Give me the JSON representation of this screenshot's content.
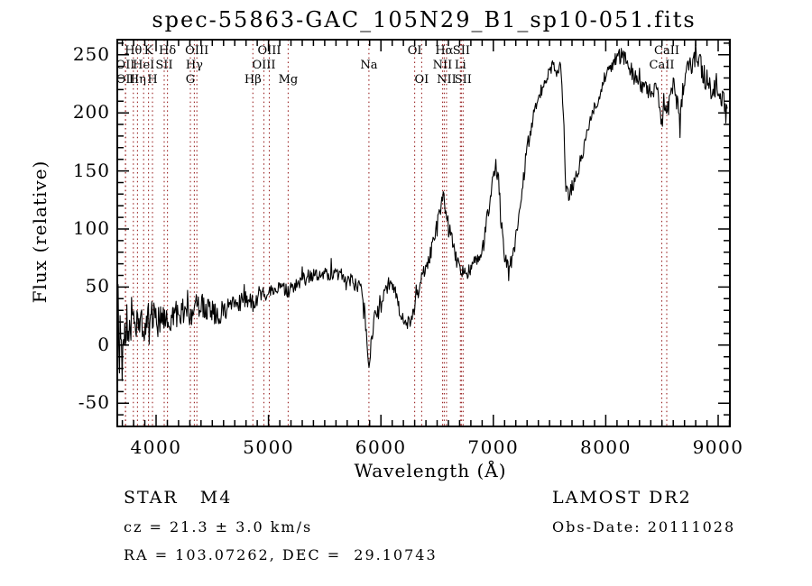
{
  "chart_data": {
    "type": "line",
    "title": "spec-55863-GAC_105N29_B1_sp10-051.fits",
    "xlabel": "Wavelength (Å)",
    "ylabel": "Flux (relative)",
    "xlim": [
      3655,
      9104
    ],
    "ylim": [
      -70,
      263
    ],
    "xticks": [
      4000,
      5000,
      6000,
      7000,
      8000,
      9000
    ],
    "yticks": [
      -50,
      0,
      50,
      100,
      150,
      200,
      250
    ],
    "x_minor_step": 100,
    "y_minor_step": 10,
    "grid": false,
    "legend": "none",
    "axis_color": "#000000",
    "line_color": "#000000",
    "marker_line_color": "#992222",
    "markers": [
      {
        "label": "Hθ",
        "wavelength": 3798,
        "row": 1
      },
      {
        "label": "K",
        "wavelength": 3933,
        "row": 1
      },
      {
        "label": "Hδ",
        "wavelength": 4101,
        "row": 1
      },
      {
        "label": "OIII",
        "wavelength": 4363,
        "row": 1
      },
      {
        "label": "OIII",
        "wavelength": 5007,
        "row": 1
      },
      {
        "label": "OI",
        "wavelength": 6300,
        "row": 1
      },
      {
        "label": "Hα",
        "wavelength": 6563,
        "row": 1
      },
      {
        "label": "SII",
        "wavelength": 6716,
        "row": 1
      },
      {
        "label": "CaII",
        "wavelength": 8542,
        "row": 1
      },
      {
        "label": "OII",
        "wavelength": 3727,
        "row": 2
      },
      {
        "label": "HeI",
        "wavelength": 3889,
        "row": 2
      },
      {
        "label": "SII",
        "wavelength": 4072,
        "row": 2
      },
      {
        "label": "Hγ",
        "wavelength": 4340,
        "row": 2
      },
      {
        "label": "OIII",
        "wavelength": 4959,
        "row": 2
      },
      {
        "label": "Na",
        "wavelength": 5893,
        "row": 2
      },
      {
        "label": "NII",
        "wavelength": 6548,
        "row": 2
      },
      {
        "label": "Li",
        "wavelength": 6707,
        "row": 2
      },
      {
        "label": "CaII",
        "wavelength": 8498,
        "row": 2
      },
      {
        "label": "OII",
        "wavelength": 3729,
        "row": 3
      },
      {
        "label": "Hη",
        "wavelength": 3835,
        "row": 3
      },
      {
        "label": "H",
        "wavelength": 3968,
        "row": 3
      },
      {
        "label": "G",
        "wavelength": 4305,
        "row": 3
      },
      {
        "label": "Hβ",
        "wavelength": 4861,
        "row": 3
      },
      {
        "label": "Mg",
        "wavelength": 5175,
        "row": 3
      },
      {
        "label": "OI",
        "wavelength": 6363,
        "row": 3
      },
      {
        "label": "NII",
        "wavelength": 6583,
        "row": 3
      },
      {
        "label": "SII",
        "wavelength": 6731,
        "row": 3
      }
    ],
    "series": [
      {
        "name": "spectrum",
        "noise_seed": 20111028,
        "step": 6,
        "x_end": 9080,
        "anchors": [
          [
            3656,
            30
          ],
          [
            3659,
            -48
          ],
          [
            3662,
            58
          ],
          [
            3666,
            -30
          ],
          [
            3670,
            66
          ],
          [
            3674,
            -12
          ],
          [
            3678,
            40
          ],
          [
            3684,
            2
          ],
          [
            3690,
            28
          ],
          [
            3700,
            16
          ],
          [
            3720,
            20
          ],
          [
            3740,
            22
          ],
          [
            3760,
            20
          ],
          [
            3780,
            23
          ],
          [
            3800,
            22
          ],
          [
            3820,
            20
          ],
          [
            3840,
            21
          ],
          [
            3860,
            22
          ],
          [
            3880,
            21
          ],
          [
            3900,
            23
          ],
          [
            3920,
            24
          ],
          [
            3940,
            25
          ],
          [
            3960,
            24
          ],
          [
            3980,
            23
          ],
          [
            4000,
            22
          ],
          [
            4030,
            20
          ],
          [
            4060,
            19
          ],
          [
            4090,
            17
          ],
          [
            4120,
            21
          ],
          [
            4150,
            24
          ],
          [
            4180,
            26
          ],
          [
            4210,
            28
          ],
          [
            4240,
            29
          ],
          [
            4270,
            28
          ],
          [
            4300,
            26
          ],
          [
            4330,
            29
          ],
          [
            4360,
            32
          ],
          [
            4390,
            34
          ],
          [
            4420,
            34
          ],
          [
            4450,
            32
          ],
          [
            4480,
            30
          ],
          [
            4510,
            28
          ],
          [
            4540,
            26
          ],
          [
            4570,
            27
          ],
          [
            4600,
            29
          ],
          [
            4640,
            32
          ],
          [
            4680,
            34
          ],
          [
            4720,
            35
          ],
          [
            4760,
            37
          ],
          [
            4800,
            39
          ],
          [
            4830,
            38
          ],
          [
            4861,
            37
          ],
          [
            4890,
            40
          ],
          [
            4920,
            42
          ],
          [
            4950,
            44
          ],
          [
            4980,
            45
          ],
          [
            5010,
            46
          ],
          [
            5040,
            47
          ],
          [
            5070,
            48
          ],
          [
            5100,
            49
          ],
          [
            5140,
            48
          ],
          [
            5175,
            47
          ],
          [
            5210,
            50
          ],
          [
            5250,
            54
          ],
          [
            5290,
            56
          ],
          [
            5330,
            58
          ],
          [
            5370,
            60
          ],
          [
            5410,
            61
          ],
          [
            5450,
            59
          ],
          [
            5490,
            61
          ],
          [
            5530,
            62
          ],
          [
            5556,
            61
          ],
          [
            5560,
            94
          ],
          [
            5564,
            61
          ],
          [
            5600,
            61
          ],
          [
            5640,
            60
          ],
          [
            5680,
            58
          ],
          [
            5720,
            56
          ],
          [
            5760,
            54
          ],
          [
            5800,
            51
          ],
          [
            5830,
            45
          ],
          [
            5855,
            28
          ],
          [
            5872,
            8
          ],
          [
            5886,
            -12
          ],
          [
            5895,
            -20
          ],
          [
            5904,
            -8
          ],
          [
            5918,
            6
          ],
          [
            5936,
            20
          ],
          [
            5958,
            28
          ],
          [
            5980,
            34
          ],
          [
            6010,
            42
          ],
          [
            6040,
            48
          ],
          [
            6070,
            51
          ],
          [
            6100,
            51
          ],
          [
            6130,
            45
          ],
          [
            6160,
            31
          ],
          [
            6195,
            21
          ],
          [
            6230,
            17
          ],
          [
            6265,
            21
          ],
          [
            6300,
            33
          ],
          [
            6335,
            48
          ],
          [
            6370,
            60
          ],
          [
            6405,
            68
          ],
          [
            6440,
            78
          ],
          [
            6475,
            92
          ],
          [
            6510,
            108
          ],
          [
            6535,
            120
          ],
          [
            6555,
            130
          ],
          [
            6572,
            119
          ],
          [
            6595,
            106
          ],
          [
            6620,
            96
          ],
          [
            6645,
            84
          ],
          [
            6670,
            74
          ],
          [
            6695,
            67
          ],
          [
            6720,
            63
          ],
          [
            6755,
            62
          ],
          [
            6790,
            65
          ],
          [
            6825,
            69
          ],
          [
            6860,
            74
          ],
          [
            6895,
            83
          ],
          [
            6930,
            98
          ],
          [
            6965,
            122
          ],
          [
            6995,
            146
          ],
          [
            7020,
            158
          ],
          [
            7045,
            143
          ],
          [
            7070,
            108
          ],
          [
            7095,
            78
          ],
          [
            7120,
            67
          ],
          [
            7150,
            70
          ],
          [
            7180,
            80
          ],
          [
            7215,
            100
          ],
          [
            7250,
            128
          ],
          [
            7285,
            158
          ],
          [
            7320,
            180
          ],
          [
            7355,
            197
          ],
          [
            7390,
            209
          ],
          [
            7425,
            220
          ],
          [
            7460,
            229
          ],
          [
            7495,
            236
          ],
          [
            7530,
            241
          ],
          [
            7565,
            243
          ],
          [
            7600,
            237
          ],
          [
            7622,
            200
          ],
          [
            7645,
            135
          ],
          [
            7665,
            128
          ],
          [
            7690,
            133
          ],
          [
            7715,
            139
          ],
          [
            7745,
            147
          ],
          [
            7780,
            160
          ],
          [
            7815,
            175
          ],
          [
            7850,
            189
          ],
          [
            7885,
            200
          ],
          [
            7920,
            208
          ],
          [
            7955,
            220
          ],
          [
            7990,
            230
          ],
          [
            8025,
            238
          ],
          [
            8060,
            243
          ],
          [
            8095,
            247
          ],
          [
            8130,
            250
          ],
          [
            8165,
            248
          ],
          [
            8200,
            241
          ],
          [
            8240,
            233
          ],
          [
            8280,
            228
          ],
          [
            8320,
            224
          ],
          [
            8360,
            220
          ],
          [
            8400,
            218
          ],
          [
            8440,
            222
          ],
          [
            8470,
            210
          ],
          [
            8498,
            191
          ],
          [
            8520,
            211
          ],
          [
            8545,
            196
          ],
          [
            8570,
            219
          ],
          [
            8600,
            228
          ],
          [
            8630,
            211
          ],
          [
            8660,
            186
          ],
          [
            8685,
            220
          ],
          [
            8710,
            235
          ],
          [
            8740,
            243
          ],
          [
            8770,
            240
          ],
          [
            8800,
            245
          ],
          [
            8830,
            241
          ],
          [
            8860,
            236
          ],
          [
            8890,
            230
          ],
          [
            8920,
            226
          ],
          [
            8950,
            221
          ],
          [
            8980,
            216
          ],
          [
            9010,
            217
          ],
          [
            9040,
            212
          ],
          [
            9080,
            207
          ]
        ],
        "noise_profile": [
          [
            3656,
            40
          ],
          [
            3700,
            32
          ],
          [
            3760,
            26
          ],
          [
            3840,
            24
          ],
          [
            3920,
            21
          ],
          [
            4000,
            18
          ],
          [
            4100,
            16
          ],
          [
            4250,
            13
          ],
          [
            4400,
            12
          ],
          [
            4600,
            10
          ],
          [
            4800,
            9
          ],
          [
            5000,
            8
          ],
          [
            5300,
            7
          ],
          [
            5600,
            7
          ],
          [
            5850,
            8
          ],
          [
            6100,
            7
          ],
          [
            6400,
            8
          ],
          [
            6700,
            7
          ],
          [
            7000,
            9
          ],
          [
            7300,
            8
          ],
          [
            7600,
            8
          ],
          [
            7900,
            7
          ],
          [
            8200,
            8
          ],
          [
            8450,
            10
          ],
          [
            8650,
            13
          ],
          [
            8850,
            13
          ],
          [
            9080,
            11
          ]
        ]
      }
    ]
  },
  "annotations": {
    "class_label": "STAR   M4",
    "survey": "LAMOST DR2",
    "cz": "cz = 21.3 ± 3.0 km/s",
    "obs_date": "Obs-Date: 20111028",
    "coords": "RA = 103.07262, DEC =  29.10743"
  }
}
